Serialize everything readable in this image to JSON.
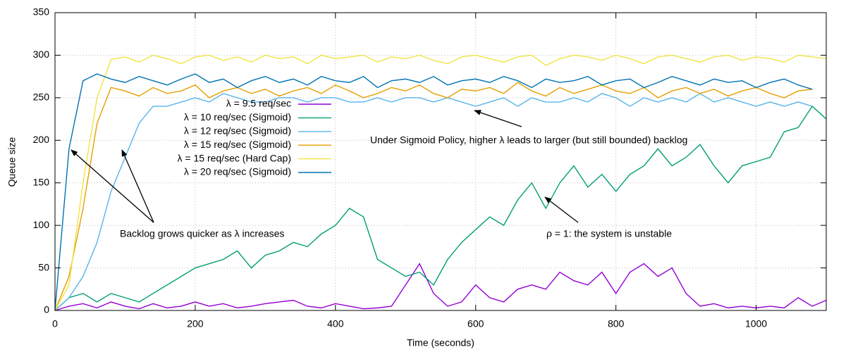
{
  "chart_data": {
    "type": "line",
    "xlabel": "Time (seconds)",
    "ylabel": "Queue size",
    "xlim": [
      0,
      1100
    ],
    "ylim": [
      0,
      350
    ],
    "xticks": [
      0,
      200,
      400,
      600,
      800,
      1000
    ],
    "yticks": [
      0,
      50,
      100,
      150,
      200,
      250,
      300,
      350
    ],
    "grid": true,
    "legend": "top-center",
    "x": [
      0,
      20,
      40,
      60,
      80,
      100,
      120,
      140,
      160,
      180,
      200,
      220,
      240,
      260,
      280,
      300,
      320,
      340,
      360,
      380,
      400,
      420,
      440,
      460,
      480,
      500,
      520,
      540,
      560,
      580,
      600,
      620,
      640,
      660,
      680,
      700,
      720,
      740,
      760,
      780,
      800,
      820,
      840,
      860,
      880,
      900,
      920,
      940,
      960,
      980,
      1000,
      1020,
      1040,
      1060,
      1080,
      1100
    ],
    "series": [
      {
        "name": "λ = 9.5 req/sec",
        "color": "#9400d3",
        "values": [
          0,
          5,
          8,
          3,
          10,
          5,
          2,
          8,
          3,
          5,
          10,
          5,
          8,
          3,
          5,
          8,
          10,
          12,
          5,
          3,
          8,
          5,
          2,
          3,
          5,
          30,
          55,
          20,
          5,
          10,
          30,
          15,
          10,
          25,
          30,
          25,
          45,
          35,
          30,
          45,
          20,
          45,
          55,
          40,
          50,
          20,
          5,
          8,
          3,
          5,
          3,
          5,
          3,
          15,
          5,
          12
        ]
      },
      {
        "name": "λ = 10 req/sec (Sigmoid)",
        "color": "#009e73",
        "values": [
          0,
          15,
          20,
          10,
          20,
          15,
          10,
          20,
          30,
          40,
          50,
          55,
          60,
          70,
          50,
          65,
          70,
          80,
          75,
          90,
          100,
          120,
          110,
          60,
          50,
          40,
          45,
          30,
          60,
          80,
          95,
          110,
          100,
          130,
          150,
          120,
          150,
          170,
          145,
          160,
          140,
          160,
          170,
          190,
          170,
          180,
          195,
          170,
          150,
          170,
          175,
          180,
          210,
          215,
          240,
          225
        ]
      },
      {
        "name": "λ = 12 req/sec (Sigmoid)",
        "color": "#56b4e9",
        "values": [
          0,
          15,
          40,
          80,
          140,
          180,
          220,
          240,
          240,
          245,
          250,
          245,
          255,
          250,
          245,
          245,
          250,
          250,
          245,
          250,
          250,
          245,
          245,
          250,
          245,
          250,
          250,
          245,
          250,
          245,
          240,
          245,
          250,
          240,
          250,
          245,
          245,
          250,
          245,
          255,
          250,
          240,
          250,
          245,
          250,
          245,
          255,
          245,
          250,
          245,
          240,
          245,
          240,
          245,
          240,
          null
        ]
      },
      {
        "name": "λ = 15 req/sec (Sigmoid)",
        "color": "#e69f00",
        "values": [
          0,
          40,
          120,
          220,
          262,
          258,
          252,
          262,
          255,
          258,
          265,
          250,
          258,
          262,
          255,
          260,
          252,
          258,
          262,
          255,
          265,
          258,
          250,
          255,
          262,
          258,
          265,
          255,
          250,
          260,
          258,
          262,
          255,
          268,
          258,
          252,
          262,
          255,
          260,
          265,
          258,
          255,
          262,
          250,
          258,
          262,
          255,
          260,
          252,
          258,
          262,
          255,
          250,
          258,
          260,
          null
        ]
      },
      {
        "name": "λ = 15 req/sec (Hard Cap)",
        "color": "#f0e442",
        "values": [
          0,
          30,
          150,
          250,
          295,
          298,
          292,
          300,
          296,
          290,
          298,
          300,
          294,
          298,
          292,
          300,
          296,
          298,
          290,
          300,
          296,
          298,
          300,
          292,
          298,
          296,
          300,
          294,
          290,
          298,
          300,
          296,
          292,
          298,
          300,
          288,
          296,
          300,
          298,
          294,
          300,
          296,
          290,
          298,
          300,
          296,
          292,
          298,
          300,
          294,
          298,
          296,
          292,
          300,
          298,
          296
        ]
      },
      {
        "name": "λ = 20 req/sec (Sigmoid)",
        "color": "#0072b2",
        "values": [
          0,
          190,
          270,
          278,
          272,
          268,
          275,
          270,
          265,
          272,
          278,
          268,
          272,
          262,
          270,
          275,
          268,
          272,
          265,
          275,
          270,
          268,
          275,
          262,
          270,
          272,
          268,
          275,
          265,
          270,
          272,
          268,
          275,
          270,
          262,
          272,
          268,
          270,
          275,
          265,
          270,
          272,
          262,
          268,
          275,
          270,
          265,
          272,
          268,
          270,
          262,
          268,
          272,
          265,
          260,
          null
        ]
      }
    ],
    "annotations": [
      "Under Sigmoid Policy, higher λ leads to larger (but still bounded) backlog",
      "Backlog grows quicker as λ increases",
      "ρ = 1: the system is unstable"
    ]
  }
}
